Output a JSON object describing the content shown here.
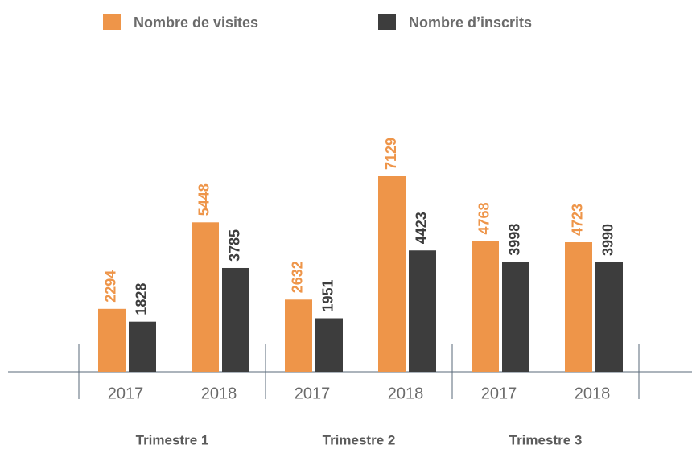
{
  "chart_data": {
    "type": "bar",
    "categories": [
      "2017",
      "2018",
      "2017",
      "2018",
      "2017",
      "2018"
    ],
    "groups": [
      "Trimestre 1",
      "Trimestre 2",
      "Trimestre 3"
    ],
    "series": [
      {
        "name": "Nombre de visites",
        "color": "#ee9549",
        "values": [
          2294,
          5448,
          2632,
          7129,
          4768,
          4723
        ]
      },
      {
        "name": "Nombre d’inscrits",
        "color": "#3d3d3d",
        "values": [
          1828,
          3785,
          1951,
          4423,
          3998,
          3990
        ]
      }
    ]
  }
}
